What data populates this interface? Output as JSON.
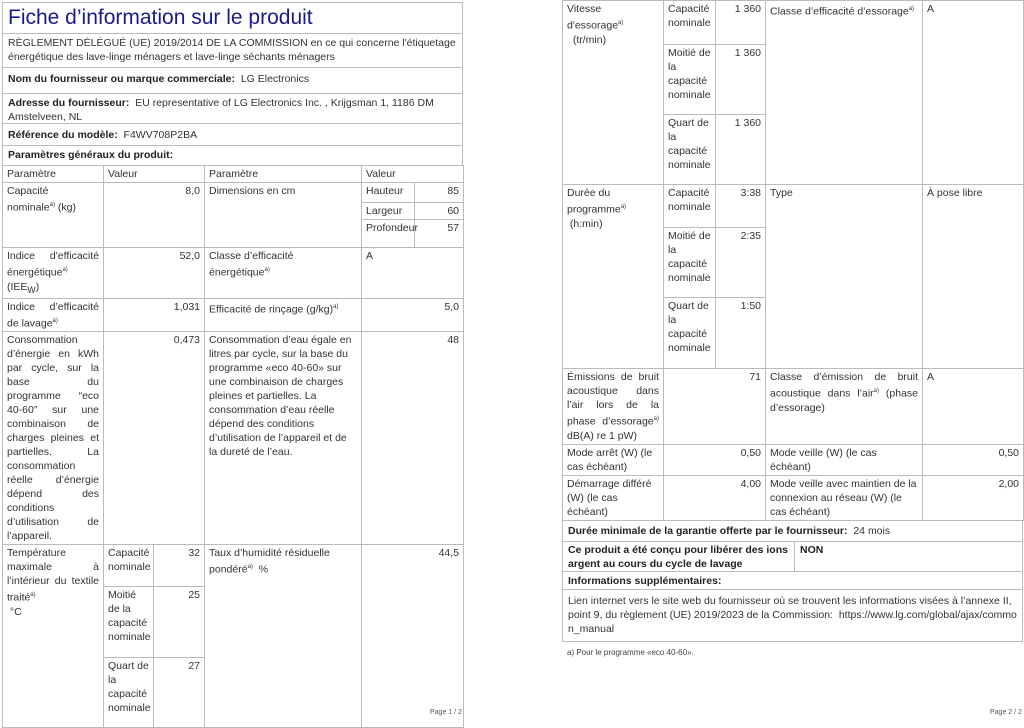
{
  "page1": {
    "title": "Fiche d’information sur le produit",
    "regulation": "RÈGLEMENT DÉLÉGUÉ (UE) 2019/2014 DE LA COMMISSION en ce qui concerne l'étiquetage énergétique des lave-linge ménagers et lave-linge séchants ménagers",
    "supplier_label": "Nom du fournisseur ou marque commerciale:",
    "supplier": "LG Electronics",
    "address_label": "Adresse du fournisseur:",
    "address": "EU representative of LG Electronics Inc. , Krijgsman 1, 1186 DM Amstelveen, NL",
    "model_label": "Référence du modèle:",
    "model": "F4WV708P2BA",
    "params_label": "Paramètres généraux du produit:",
    "headers": [
      "Paramètre",
      "Valeur",
      "Paramètre",
      "Valeur"
    ],
    "capacity": {
      "label": "Capacité nominale",
      "unit": "(kg)",
      "value": "8,0",
      "dim_label": "Dimensions en cm",
      "h_label": "Hauteur",
      "h": "85",
      "w_label": "Largeur",
      "w": "60",
      "d_label": "Profondeur",
      "d": "57"
    },
    "iee": {
      "label": "Indice d'efficacité énergétique",
      "unit": "(IEE",
      "sub": "W",
      "close": ")",
      "value": "52,0",
      "class_label": "Classe d’efficacité énergétique",
      "class": "A"
    },
    "wash": {
      "label": "Indice d’efficacité de lavage",
      "value": "1,031",
      "rinse_label": "Efficacité de rinçage (g/kg)",
      "rinse": "5,0"
    },
    "energy": {
      "label": "Consommation d’énergie en kWh par cycle, sur la base du programme “eco 40-60” sur une combinaison de charges pleines et partielles. La consommation réelle d’énergie dépend des conditions d’utilisation de l’appareil.",
      "value": "0,473",
      "water_label": "Consommation d’eau égale en litres par cycle, sur la base du programme «eco 40-60» sur une combinaison de charges pleines et partielles. La consommation d’eau réelle dépend des conditions d’utilisation de l’appareil et de la dureté de l’eau.",
      "water": "48"
    },
    "temp": {
      "label": "Température maximale à l’intérieur du textile traité",
      "unit": "°C",
      "sub": [
        {
          "label": "Capacité nominale",
          "value": "32"
        },
        {
          "label": "Moitié de la capacité nominale",
          "value": "25"
        },
        {
          "label": "Quart de la capacité nominale",
          "value": "27"
        }
      ],
      "humidity_label": "Taux d’humidité résiduelle pondéré",
      "humidity_unit": "%",
      "humidity": "44,5"
    },
    "sup": "a)",
    "page_num": "Page 1 / 2"
  },
  "page2": {
    "spin": {
      "label": "Vitesse d'essorage",
      "unit": "(tr/min)",
      "sub": [
        {
          "label": "Capacité nominale",
          "value": "1 360"
        },
        {
          "label": "Moitié de la capacité nominale",
          "value": "1 360"
        },
        {
          "label": "Quart de la capacité nominale",
          "value": "1 360"
        }
      ],
      "class_label": "Classe d’efficacité d’essorage",
      "class": "A"
    },
    "duration": {
      "label": "Durée du programme",
      "unit": "(h:min)",
      "sub": [
        {
          "label": "Capacité nominale",
          "value": "3:38"
        },
        {
          "label": "Moitié de la capacité nominale",
          "value": "2:35"
        },
        {
          "label": "Quart de la capacité nominale",
          "value": "1:50"
        }
      ],
      "type_label": "Type",
      "type": "À pose libre"
    },
    "noise": {
      "label1": "Émissions de bruit acoustique dans l’air lors de la phase d’essorage",
      "label2": "dB(A) re 1 pW)",
      "value": "71",
      "class_label1": "Classe d’émission de bruit acoustique dans l’air",
      "class_label2": "(phase d’essorage)",
      "class": "A"
    },
    "off": {
      "label": "Mode arrêt (W) (le cas échéant)",
      "value": "0,50",
      "standby_label": "Mode veille (W) (le cas échéant)",
      "standby": "0,50"
    },
    "delay": {
      "label": "Démarrage différé (W) (le cas échéant)",
      "value": "4,00",
      "network_label": "Mode veille avec maintien de la connexion au réseau (W) (le cas échéant)",
      "network": "2,00"
    },
    "warranty_label": "Durée minimale de la garantie offerte par le fournisseur:",
    "warranty": "24 mois",
    "ions_label": "Ce produit a été conçu pour libérer des ions argent au cours du cycle de lavage",
    "ions": "NON",
    "info_label": "Informations supplémentaires:",
    "link_text": "Lien internet vers le site web du fournisseur où se trouvent les informations visées à l’annexe II, point 9, du règlement (UE) 2019/2023 de la Commission:",
    "link": "https://www.lg.com/global/ajax/common_manual",
    "footnote": "a) Pour le programme «eco 40-60».",
    "sup": "a)",
    "page_num": "Page 2 / 2"
  }
}
